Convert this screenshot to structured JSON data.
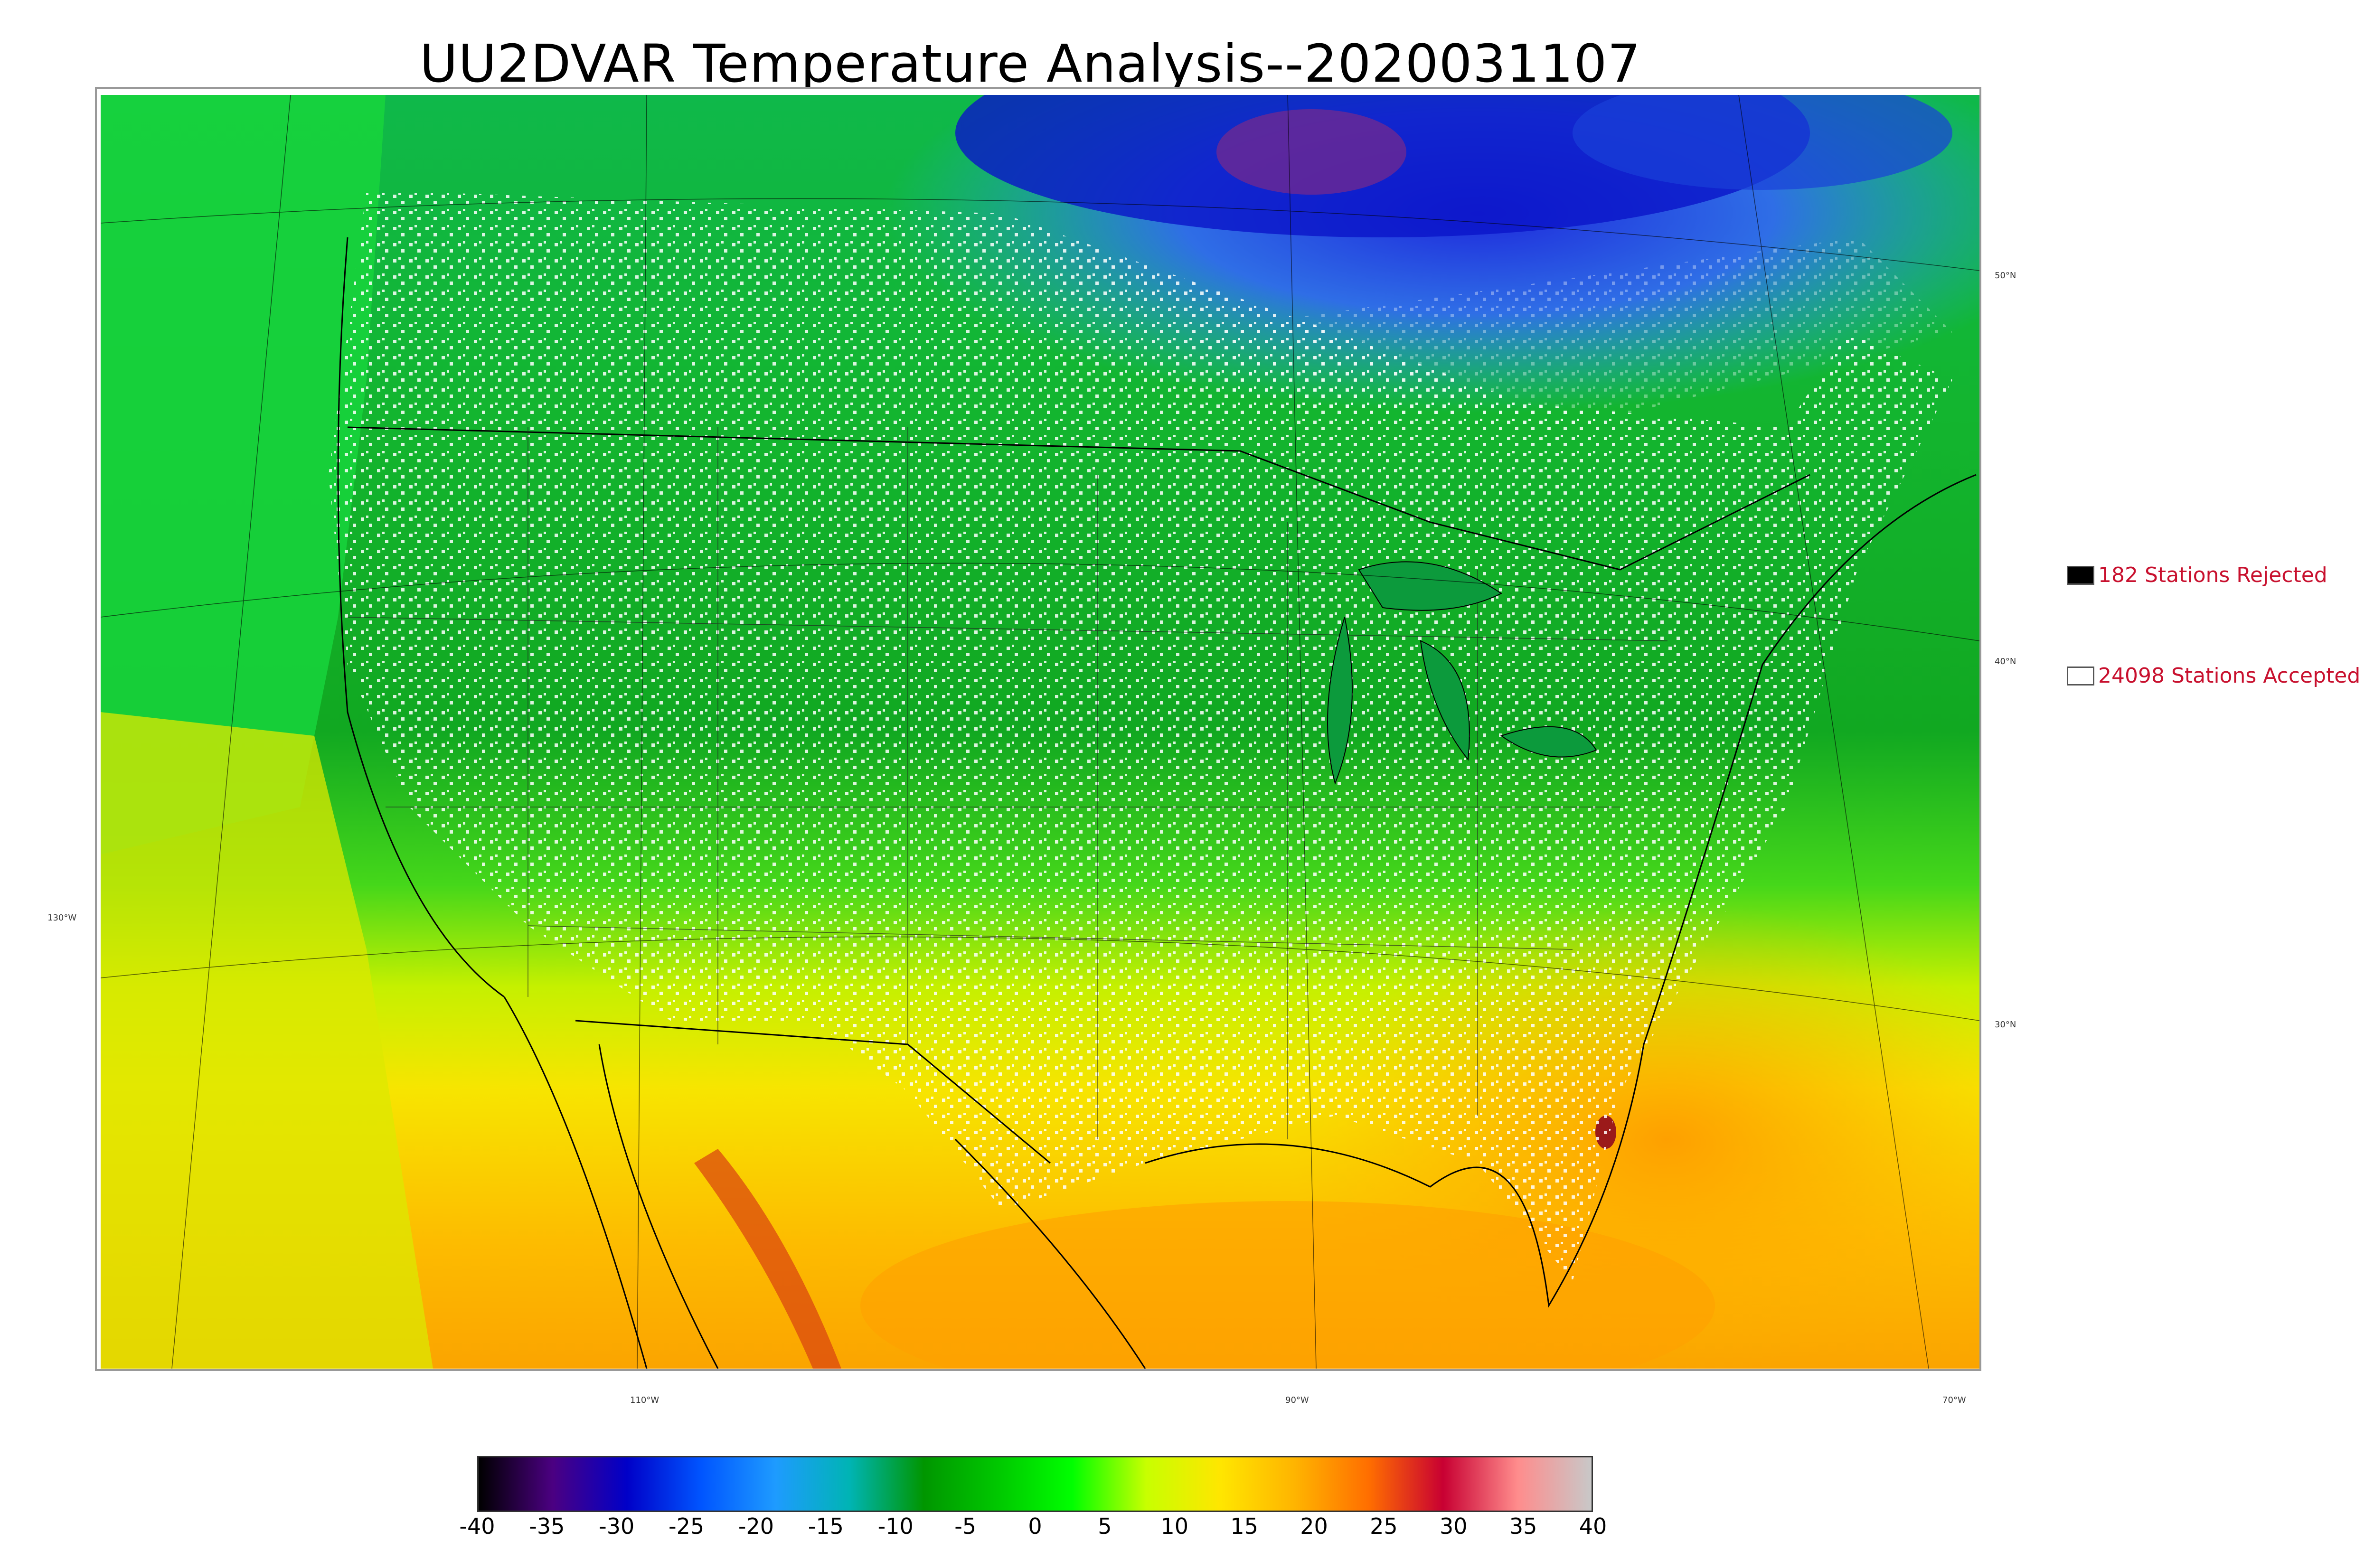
{
  "title": "UU2DVAR Temperature Analysis--2020031107",
  "legend": {
    "rejected": {
      "label": "182 Stations Rejected",
      "swatch_color": "#000000"
    },
    "accepted": {
      "label": "24098 Stations Accepted",
      "swatch_color": "#ffffff"
    }
  },
  "graticule_labels": {
    "lat": [
      "50°N",
      "40°N",
      "30°N"
    ],
    "lon": [
      "130°W",
      "110°W",
      "90°W",
      "70°W"
    ]
  },
  "colorbar": {
    "ticks": [
      "-40",
      "-35",
      "-30",
      "-25",
      "-20",
      "-15",
      "-10",
      "-5",
      "0",
      "5",
      "10",
      "15",
      "20",
      "25",
      "30",
      "35",
      "40"
    ],
    "range": [
      -40,
      40
    ],
    "colors": [
      "#000000",
      "#4b0082",
      "#0000c8",
      "#0055ff",
      "#1e9bff",
      "#00b4b4",
      "#009600",
      "#00c800",
      "#00ff00",
      "#c8ff00",
      "#ffe600",
      "#ffb400",
      "#ff6e00",
      "#c80032",
      "#ff8c8c",
      "#c8c8c8"
    ]
  }
}
